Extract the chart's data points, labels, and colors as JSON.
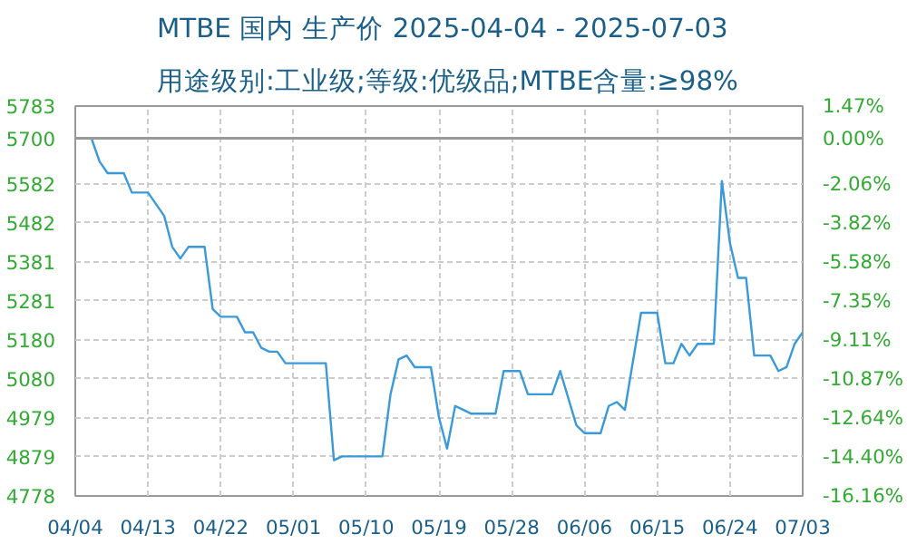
{
  "chart_data": {
    "type": "line",
    "title": "MTBE 国内 生产价 2025-04-04 - 2025-07-03",
    "subtitle": "用途级别:工业级;等级:优级品;MTBE含量:≥98%",
    "x": [
      "2025-04-04",
      "2025-04-06",
      "2025-04-07",
      "2025-04-08",
      "2025-04-10",
      "2025-04-11",
      "2025-04-13",
      "2025-04-15",
      "2025-04-16",
      "2025-04-17",
      "2025-04-18",
      "2025-04-20",
      "2025-04-21",
      "2025-04-22",
      "2025-04-24",
      "2025-04-25",
      "2025-04-26",
      "2025-04-27",
      "2025-04-28",
      "2025-04-29",
      "2025-04-30",
      "2025-05-05",
      "2025-05-06",
      "2025-05-07",
      "2025-05-12",
      "2025-05-13",
      "2025-05-14",
      "2025-05-15",
      "2025-05-16",
      "2025-05-18",
      "2025-05-19",
      "2025-05-20",
      "2025-05-21",
      "2025-05-23",
      "2025-05-26",
      "2025-05-27",
      "2025-05-29",
      "2025-05-30",
      "2025-06-02",
      "2025-06-03",
      "2025-06-05",
      "2025-06-06",
      "2025-06-08",
      "2025-06-09",
      "2025-06-10",
      "2025-06-11",
      "2025-06-13",
      "2025-06-15",
      "2025-06-16",
      "2025-06-17",
      "2025-06-18",
      "2025-06-19",
      "2025-06-20",
      "2025-06-22",
      "2025-06-23",
      "2025-06-24",
      "2025-06-25",
      "2025-06-26",
      "2025-06-27",
      "2025-06-29",
      "2025-06-30",
      "2025-07-01",
      "2025-07-02",
      "2025-07-03"
    ],
    "series": [
      {
        "color": "#3a9ad9",
        "values": [
          5700,
          5700,
          5640,
          5610,
          5610,
          5560,
          5560,
          5500,
          5420,
          5390,
          5420,
          5420,
          5260,
          5240,
          5240,
          5200,
          5200,
          5160,
          5150,
          5150,
          5120,
          5120,
          4870,
          4880,
          4880,
          5040,
          5130,
          5140,
          5110,
          5110,
          4980,
          4900,
          5010,
          4990,
          4990,
          5100,
          5100,
          5040,
          5040,
          5100,
          4960,
          4940,
          4940,
          5010,
          5020,
          5000,
          5250,
          5250,
          5120,
          5120,
          5170,
          5140,
          5170,
          5170,
          5590,
          5430,
          5340,
          5340,
          5140,
          5140,
          5100,
          5110,
          5170,
          5200
        ]
      }
    ],
    "xlim": [
      "2025-04-04",
      "2025-07-03"
    ],
    "xticks": [
      {
        "value": "2025-04-04",
        "label": "04/04"
      },
      {
        "value": "2025-04-13",
        "label": "04/13"
      },
      {
        "value": "2025-04-22",
        "label": "04/22"
      },
      {
        "value": "2025-05-01",
        "label": "05/01"
      },
      {
        "value": "2025-05-10",
        "label": "05/10"
      },
      {
        "value": "2025-05-19",
        "label": "05/19"
      },
      {
        "value": "2025-05-28",
        "label": "05/28"
      },
      {
        "value": "2025-06-06",
        "label": "06/06"
      },
      {
        "value": "2025-06-15",
        "label": "06/15"
      },
      {
        "value": "2025-06-24",
        "label": "06/24"
      },
      {
        "value": "2025-07-03",
        "label": "07/03"
      }
    ],
    "ylim": [
      4778,
      5783
    ],
    "yticks": [
      4778,
      4879,
      4979,
      5080,
      5180,
      5281,
      5381,
      5482,
      5582,
      5700,
      5783
    ],
    "y2lim": [
      -16.16,
      1.47
    ],
    "y2ticks": [
      {
        "value": -16.16,
        "label": "-16.16%"
      },
      {
        "value": -14.4,
        "label": "-14.40%"
      },
      {
        "value": -12.64,
        "label": "-12.64%"
      },
      {
        "value": -10.87,
        "label": "-10.87%"
      },
      {
        "value": -9.11,
        "label": "-9.11%"
      },
      {
        "value": -7.35,
        "label": "-7.35%"
      },
      {
        "value": -5.58,
        "label": "-5.58%"
      },
      {
        "value": -3.82,
        "label": "-3.82%"
      },
      {
        "value": -2.06,
        "label": "-2.06%"
      },
      {
        "value": 0,
        "label": "0.00%"
      },
      {
        "value": 1.47,
        "label": "1.47%"
      }
    ],
    "ref_lines": [
      {
        "axis": "y",
        "value": 5700,
        "color": "#999999"
      }
    ],
    "grid": true
  }
}
